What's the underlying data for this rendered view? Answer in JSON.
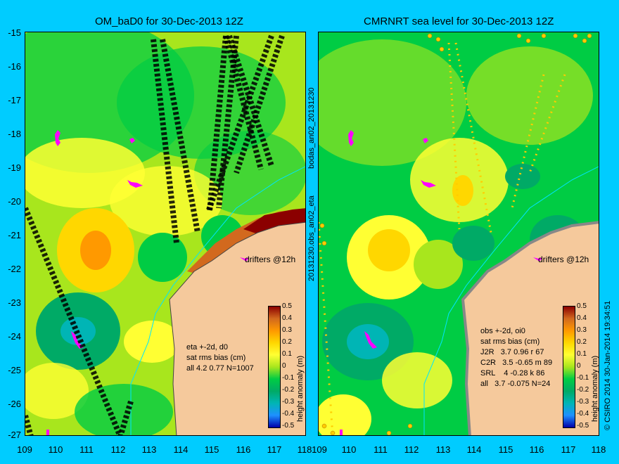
{
  "left_panel": {
    "title": "OM_baD0 for 30-Dec-2013 12Z",
    "info_lines": [
      "eta +-2d, d0",
      "sat rms bias (cm)",
      "all 4.2 0.77 N=1007"
    ],
    "drifter_label": "drifters @12h"
  },
  "right_panel": {
    "title": "CMRNRT sea level  for 30-Dec-2013 12Z",
    "info_lines": [
      "obs +-2d, oi0",
      "sat rms bias (cm)",
      "J2R   3.7 0.96 r 67",
      "C2R   3.5 -0.65 m 89",
      "SRL    4 -0.28 k 86",
      "all   3.7 -0.075 N=24"
    ],
    "drifter_label": "drifters @12h"
  },
  "side_label_left": "bodas_an02_20131230",
  "side_label_right": "20131230.obs_an02_eta",
  "credit": "© CSIRO 2014   30-Jan-2014 19:34:51",
  "colorbar": {
    "label": "height anomaly (m)",
    "ticks": [
      "0.5",
      "0.4",
      "0.3",
      "0.2",
      "0.1",
      "0",
      "-0.1",
      "-0.2",
      "-0.3",
      "-0.4",
      "-0.5"
    ],
    "colors": [
      "#8b0000",
      "#d2691e",
      "#ff9900",
      "#ffd700",
      "#ffff33",
      "#a8e61d",
      "#00cc44",
      "#00aa66",
      "#00b5b5",
      "#1e90ff",
      "#0000aa"
    ]
  },
  "y_ticks": [
    "-15",
    "-16",
    "-17",
    "-18",
    "-19",
    "-20",
    "-21",
    "-22",
    "-23",
    "-24",
    "-25",
    "-26",
    "-27"
  ],
  "x_ticks": [
    "109",
    "110",
    "111",
    "112",
    "113",
    "114",
    "115",
    "116",
    "117",
    "118"
  ],
  "colors": {
    "background": "#00ccff",
    "land": "#f5c99c",
    "drifter": "#ff00ff",
    "coastline": "#00e5ff"
  }
}
